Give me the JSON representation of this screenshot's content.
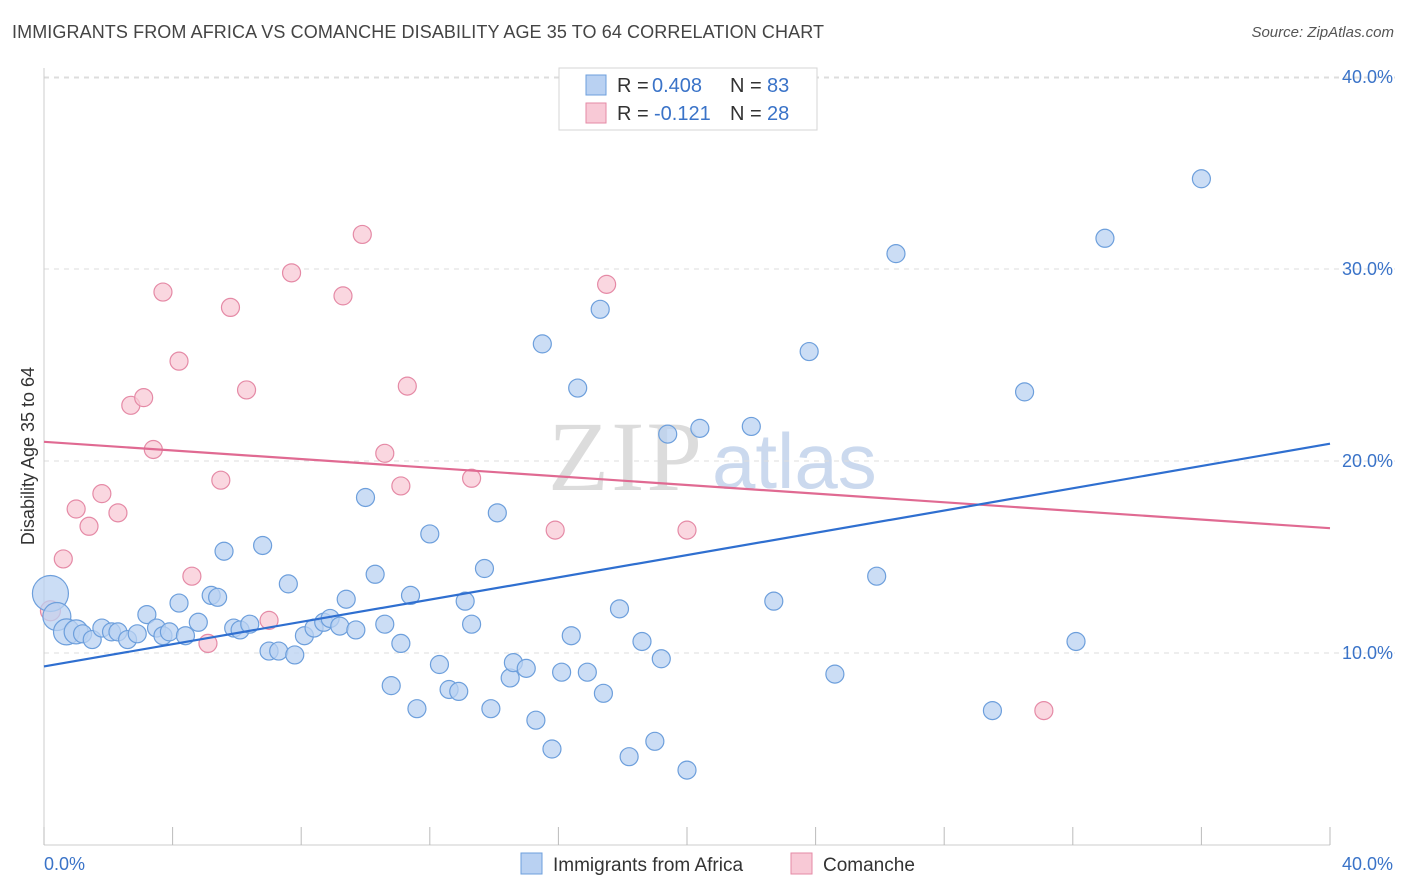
{
  "header": {
    "title": "IMMIGRANTS FROM AFRICA VS COMANCHE DISABILITY AGE 35 TO 64 CORRELATION CHART",
    "source": "Source: ZipAtlas.com"
  },
  "watermark": {
    "zip": "ZIP",
    "atlas": "atlas"
  },
  "legend": [
    {
      "r_label": "R =",
      "r_value": "0.408",
      "n_label": "N =",
      "n_value": "83"
    },
    {
      "r_label": "R =",
      "r_value": "-0.121",
      "n_label": "N =",
      "n_value": "28"
    }
  ],
  "colors": {
    "blue_fill": "#b9d1f2",
    "blue_stroke": "#6d9fdc",
    "blue_line": "#2f6fd0",
    "pink_fill": "#f8c9d6",
    "pink_stroke": "#e58aa6",
    "pink_line": "#e06a92",
    "grid": "#dddddd",
    "tick_text": "#3a73c8"
  },
  "chart_data": {
    "type": "scatter",
    "title": "IMMIGRANTS FROM AFRICA VS COMANCHE DISABILITY AGE 35 TO 64 CORRELATION CHART",
    "xlabel": "",
    "ylabel": "Disability Age 35 to 64",
    "xlim": [
      0,
      40
    ],
    "ylim": [
      0,
      40
    ],
    "x_tick_labels": [
      "0.0%",
      "40.0%"
    ],
    "y_tick_labels": [
      "10.0%",
      "20.0%",
      "30.0%",
      "40.0%"
    ],
    "y_tick_values": [
      10,
      20,
      30,
      40
    ],
    "grid": true,
    "legend_position": "top-center",
    "series": [
      {
        "name": "Immigrants from Africa",
        "color": "#b9d1f2",
        "trend": {
          "x": [
            0,
            40
          ],
          "y": [
            9.3,
            20.9
          ]
        },
        "points": [
          [
            0.2,
            13.1,
            18
          ],
          [
            0.4,
            11.9,
            14
          ],
          [
            0.7,
            11.1,
            13
          ],
          [
            1.0,
            11.1,
            12
          ],
          [
            1.2,
            11.0,
            9
          ],
          [
            1.5,
            10.7,
            9
          ],
          [
            1.8,
            11.3,
            9
          ],
          [
            2.1,
            11.1,
            9
          ],
          [
            2.3,
            11.1,
            9
          ],
          [
            2.6,
            10.7,
            9
          ],
          [
            2.9,
            11.0,
            9
          ],
          [
            3.2,
            12.0,
            9
          ],
          [
            3.5,
            11.3,
            9
          ],
          [
            3.7,
            10.9,
            9
          ],
          [
            3.9,
            11.1,
            9
          ],
          [
            4.2,
            12.6,
            9
          ],
          [
            4.4,
            10.9,
            9
          ],
          [
            4.8,
            11.6,
            9
          ],
          [
            5.2,
            13.0,
            9
          ],
          [
            5.4,
            12.9,
            9
          ],
          [
            5.6,
            15.3,
            9
          ],
          [
            5.9,
            11.3,
            9
          ],
          [
            6.1,
            11.2,
            9
          ],
          [
            6.4,
            11.5,
            9
          ],
          [
            6.8,
            15.6,
            9
          ],
          [
            7.0,
            10.1,
            9
          ],
          [
            7.3,
            10.1,
            9
          ],
          [
            7.6,
            13.6,
            9
          ],
          [
            7.8,
            9.9,
            9
          ],
          [
            8.1,
            10.9,
            9
          ],
          [
            8.4,
            11.3,
            9
          ],
          [
            8.7,
            11.6,
            9
          ],
          [
            8.9,
            11.8,
            9
          ],
          [
            9.2,
            11.4,
            9
          ],
          [
            9.4,
            12.8,
            9
          ],
          [
            9.7,
            11.2,
            9
          ],
          [
            10.0,
            18.1,
            9
          ],
          [
            10.3,
            14.1,
            9
          ],
          [
            10.6,
            11.5,
            9
          ],
          [
            10.8,
            8.3,
            9
          ],
          [
            11.1,
            10.5,
            9
          ],
          [
            11.4,
            13.0,
            9
          ],
          [
            11.6,
            7.1,
            9
          ],
          [
            12.0,
            16.2,
            9
          ],
          [
            12.3,
            9.4,
            9
          ],
          [
            12.6,
            8.1,
            9
          ],
          [
            12.9,
            8.0,
            9
          ],
          [
            13.1,
            12.7,
            9
          ],
          [
            13.3,
            11.5,
            9
          ],
          [
            13.7,
            14.4,
            9
          ],
          [
            13.9,
            7.1,
            9
          ],
          [
            14.1,
            17.3,
            9
          ],
          [
            14.5,
            8.7,
            9
          ],
          [
            14.6,
            9.5,
            9
          ],
          [
            15.0,
            9.2,
            9
          ],
          [
            15.3,
            6.5,
            9
          ],
          [
            15.5,
            26.1,
            9
          ],
          [
            15.8,
            5.0,
            9
          ],
          [
            16.1,
            9.0,
            9
          ],
          [
            16.4,
            10.9,
            9
          ],
          [
            16.6,
            23.8,
            9
          ],
          [
            16.9,
            9.0,
            9
          ],
          [
            17.3,
            27.9,
            9
          ],
          [
            17.4,
            7.9,
            9
          ],
          [
            17.9,
            12.3,
            9
          ],
          [
            18.2,
            4.6,
            9
          ],
          [
            18.6,
            10.6,
            9
          ],
          [
            19.0,
            5.4,
            9
          ],
          [
            19.2,
            9.7,
            9
          ],
          [
            19.4,
            21.4,
            9
          ],
          [
            20.0,
            3.9,
            9
          ],
          [
            20.4,
            21.7,
            9
          ],
          [
            22.0,
            21.8,
            9
          ],
          [
            22.7,
            12.7,
            9
          ],
          [
            23.8,
            25.7,
            9
          ],
          [
            24.6,
            8.9,
            9
          ],
          [
            25.9,
            14.0,
            9
          ],
          [
            26.5,
            30.8,
            9
          ],
          [
            29.5,
            7.0,
            9
          ],
          [
            30.5,
            23.6,
            9
          ],
          [
            32.1,
            10.6,
            9
          ],
          [
            33.0,
            31.6,
            9
          ],
          [
            36.0,
            34.7,
            9
          ]
        ]
      },
      {
        "name": "Comanche",
        "color": "#f8c9d6",
        "trend": {
          "x": [
            0,
            40
          ],
          "y": [
            21.0,
            16.5
          ]
        },
        "points": [
          [
            0.2,
            12.2,
            10
          ],
          [
            0.6,
            14.9,
            9
          ],
          [
            1.0,
            17.5,
            9
          ],
          [
            1.4,
            16.6,
            9
          ],
          [
            1.8,
            18.3,
            9
          ],
          [
            2.3,
            17.3,
            9
          ],
          [
            2.7,
            22.9,
            9
          ],
          [
            3.1,
            23.3,
            9
          ],
          [
            3.4,
            20.6,
            9
          ],
          [
            3.7,
            28.8,
            9
          ],
          [
            4.2,
            25.2,
            9
          ],
          [
            4.6,
            14.0,
            9
          ],
          [
            5.1,
            10.5,
            9
          ],
          [
            5.5,
            19.0,
            9
          ],
          [
            5.8,
            28.0,
            9
          ],
          [
            6.3,
            23.7,
            9
          ],
          [
            7.0,
            11.7,
            9
          ],
          [
            7.7,
            29.8,
            9
          ],
          [
            9.3,
            28.6,
            9
          ],
          [
            9.9,
            31.8,
            9
          ],
          [
            10.6,
            20.4,
            9
          ],
          [
            11.1,
            18.7,
            9
          ],
          [
            11.3,
            23.9,
            9
          ],
          [
            13.3,
            19.1,
            9
          ],
          [
            15.9,
            16.4,
            9
          ],
          [
            17.5,
            29.2,
            9
          ],
          [
            20.0,
            16.4,
            9
          ],
          [
            31.1,
            7.0,
            9
          ]
        ]
      }
    ]
  },
  "bottom_legend": [
    {
      "label": "Immigrants from Africa"
    },
    {
      "label": "Comanche"
    }
  ]
}
